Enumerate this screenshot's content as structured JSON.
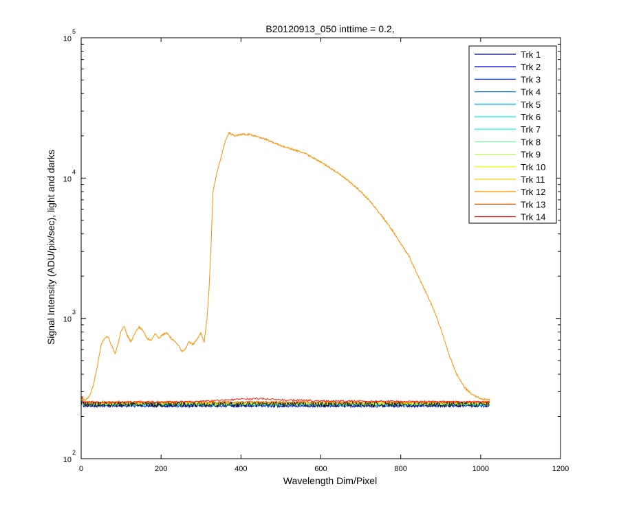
{
  "chart_data": {
    "type": "line",
    "title": "B20120913_050 inttime = 0.2,",
    "xlabel": "Wavelength Dim/Pixel",
    "ylabel": "Signal Intensity (ADU/pix/sec), light and darks",
    "xlim": [
      0,
      1200
    ],
    "ylim": [
      100,
      100000
    ],
    "yscale": "log",
    "xticks": [
      "0",
      "200",
      "400",
      "600",
      "800",
      "1000",
      "1200"
    ],
    "yticks": [
      {
        "base": "10",
        "exp": "2",
        "value": 100
      },
      {
        "base": "10",
        "exp": "3",
        "value": 1000
      },
      {
        "base": "10",
        "exp": "4",
        "value": 10000
      },
      {
        "base": "10",
        "exp": "5",
        "value": 100000
      }
    ],
    "grid": false,
    "legend_position": "top-right",
    "signal_track": "Trk 12",
    "signal_profile": [
      [
        0,
        265
      ],
      [
        10,
        262
      ],
      [
        20,
        275
      ],
      [
        30,
        330
      ],
      [
        40,
        450
      ],
      [
        50,
        650
      ],
      [
        60,
        730
      ],
      [
        68,
        740
      ],
      [
        75,
        650
      ],
      [
        85,
        560
      ],
      [
        95,
        700
      ],
      [
        100,
        820
      ],
      [
        108,
        880
      ],
      [
        115,
        760
      ],
      [
        125,
        680
      ],
      [
        135,
        790
      ],
      [
        145,
        870
      ],
      [
        155,
        820
      ],
      [
        165,
        720
      ],
      [
        175,
        700
      ],
      [
        185,
        780
      ],
      [
        195,
        720
      ],
      [
        205,
        770
      ],
      [
        215,
        790
      ],
      [
        225,
        720
      ],
      [
        235,
        680
      ],
      [
        245,
        640
      ],
      [
        252,
        580
      ],
      [
        260,
        600
      ],
      [
        270,
        680
      ],
      [
        280,
        650
      ],
      [
        290,
        710
      ],
      [
        300,
        790
      ],
      [
        308,
        680
      ],
      [
        315,
        1000
      ],
      [
        320,
        1600
      ],
      [
        325,
        3200
      ],
      [
        330,
        8000
      ],
      [
        340,
        11000
      ],
      [
        350,
        14000
      ],
      [
        360,
        18000
      ],
      [
        370,
        21000
      ],
      [
        385,
        20000
      ],
      [
        400,
        20500
      ],
      [
        420,
        20500
      ],
      [
        440,
        19800
      ],
      [
        460,
        19000
      ],
      [
        480,
        18000
      ],
      [
        500,
        17000
      ],
      [
        530,
        16000
      ],
      [
        560,
        15000
      ],
      [
        590,
        13500
      ],
      [
        620,
        12000
      ],
      [
        650,
        10500
      ],
      [
        680,
        9000
      ],
      [
        700,
        8000
      ],
      [
        720,
        7000
      ],
      [
        750,
        5500
      ],
      [
        780,
        4200
      ],
      [
        800,
        3400
      ],
      [
        820,
        2800
      ],
      [
        840,
        2100
      ],
      [
        860,
        1600
      ],
      [
        880,
        1200
      ],
      [
        900,
        850
      ],
      [
        920,
        560
      ],
      [
        940,
        400
      ],
      [
        960,
        320
      ],
      [
        980,
        285
      ],
      [
        1000,
        268
      ],
      [
        1020,
        262
      ]
    ],
    "dark_tracks": [
      {
        "name": "Trk 1",
        "level": 240
      },
      {
        "name": "Trk 2",
        "level": 238
      },
      {
        "name": "Trk 3",
        "level": 242
      },
      {
        "name": "Trk 4",
        "level": 244
      },
      {
        "name": "Trk 5",
        "level": 246
      },
      {
        "name": "Trk 6",
        "level": 243
      },
      {
        "name": "Trk 7",
        "level": 245
      },
      {
        "name": "Trk 8",
        "level": 247
      },
      {
        "name": "Trk 9",
        "level": 246
      },
      {
        "name": "Trk 10",
        "level": 248
      },
      {
        "name": "Trk 11",
        "level": 250
      },
      {
        "name": "Trk 13",
        "level": 253
      },
      {
        "name": "Trk 14",
        "level": 255
      }
    ],
    "red_bump": [
      [
        0,
        252
      ],
      [
        200,
        253
      ],
      [
        300,
        256
      ],
      [
        400,
        266
      ],
      [
        450,
        268
      ],
      [
        500,
        263
      ],
      [
        600,
        258
      ],
      [
        800,
        256
      ],
      [
        1020,
        254
      ]
    ],
    "legend": [
      {
        "name": "Trk 1",
        "color": "#00008f"
      },
      {
        "name": "Trk 2",
        "color": "#0000df"
      },
      {
        "name": "Trk 3",
        "color": "#0030ff"
      },
      {
        "name": "Trk 4",
        "color": "#0070ff"
      },
      {
        "name": "Trk 5",
        "color": "#00afff"
      },
      {
        "name": "Trk 6",
        "color": "#00efff"
      },
      {
        "name": "Trk 7",
        "color": "#30ffcf"
      },
      {
        "name": "Trk 8",
        "color": "#70ff8f"
      },
      {
        "name": "Trk 9",
        "color": "#afff50"
      },
      {
        "name": "Trk 10",
        "color": "#efff10"
      },
      {
        "name": "Trk 11",
        "color": "#ffcf00"
      },
      {
        "name": "Trk 12",
        "color": "#ff8f00"
      },
      {
        "name": "Trk 13",
        "color": "#ff5000"
      },
      {
        "name": "Trk 14",
        "color": "#ff1000"
      }
    ]
  }
}
